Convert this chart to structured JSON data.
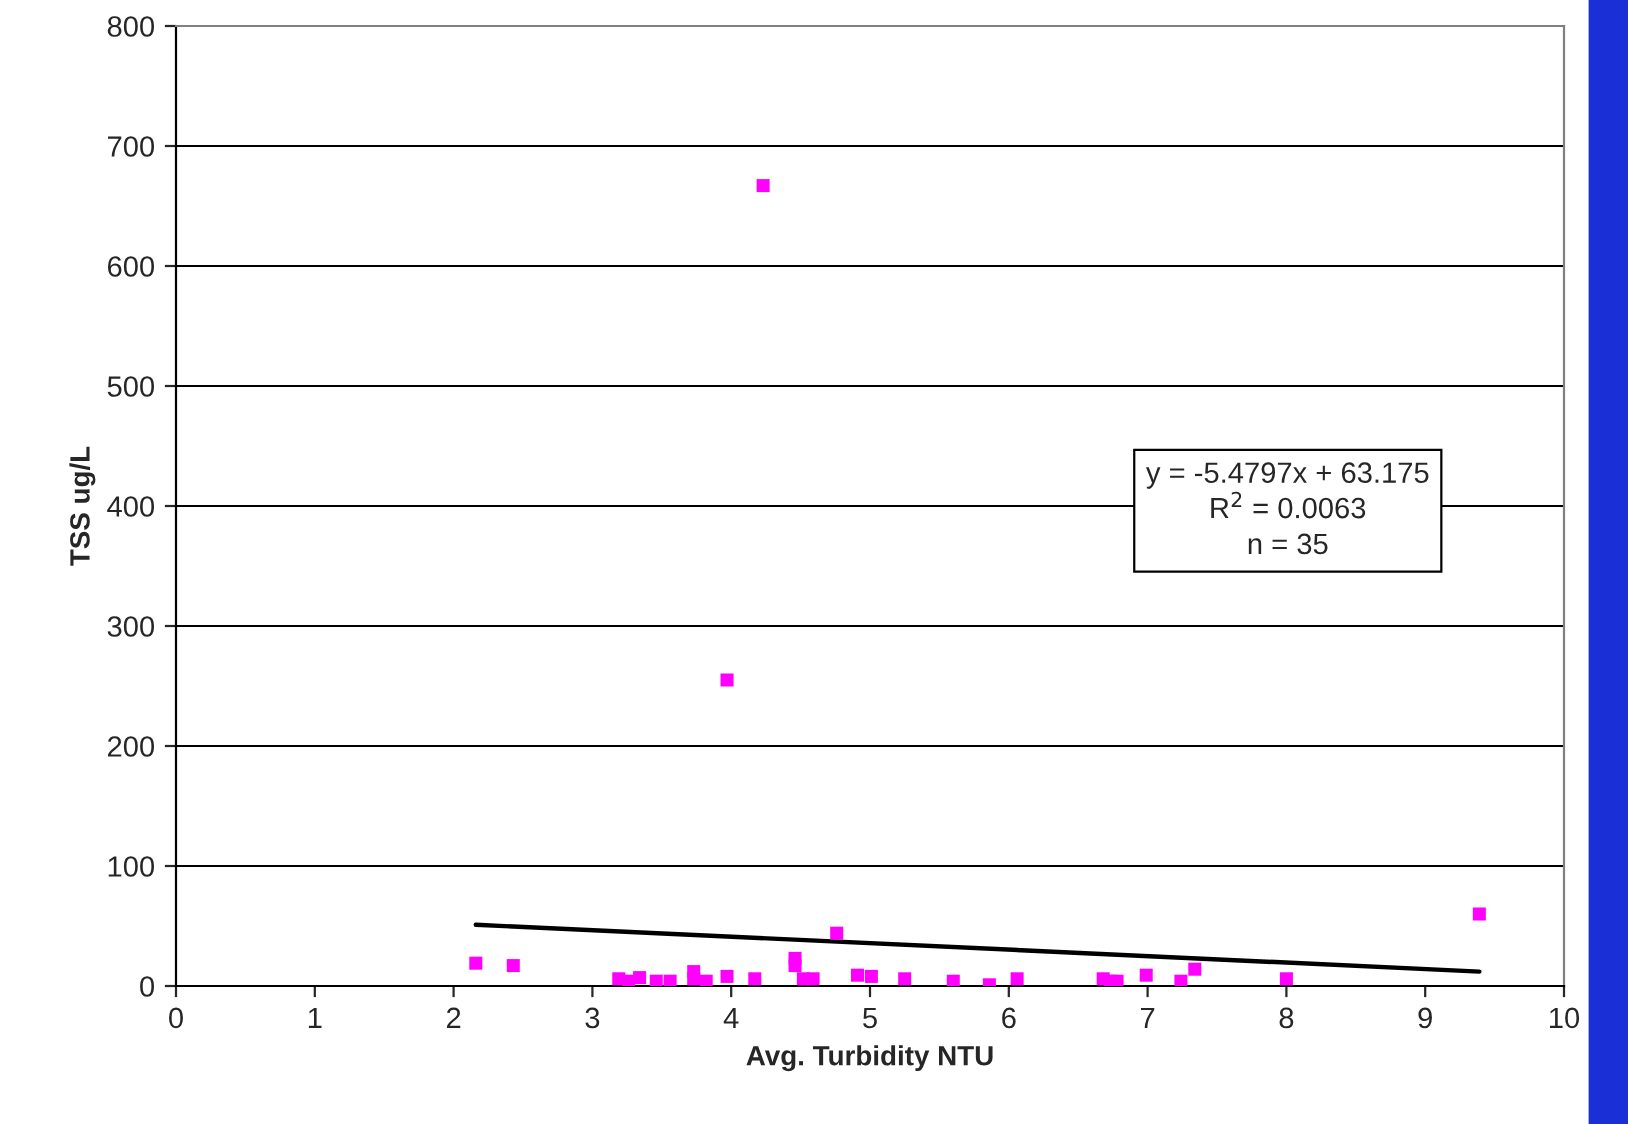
{
  "chart_data": {
    "type": "scatter",
    "xlabel": "Avg. Turbidity NTU",
    "ylabel": "TSS ug/L",
    "xlim": [
      0,
      10
    ],
    "xticks": [
      0,
      1,
      2,
      3,
      4,
      5,
      6,
      7,
      8,
      9,
      10
    ],
    "ylim": [
      0,
      800
    ],
    "yticks": [
      0,
      100,
      200,
      300,
      400,
      500,
      600,
      700,
      800
    ],
    "grid": "y",
    "series": [
      {
        "color": "#ff00ff",
        "marker": "square",
        "x": [
          2.16,
          2.43,
          3.19,
          3.26,
          3.34,
          3.46,
          3.56,
          3.73,
          3.73,
          3.82,
          3.97,
          4.17,
          4.46,
          4.46,
          4.52,
          4.59,
          4.76,
          4.91,
          5.01,
          5.25,
          5.6,
          5.86,
          6.06,
          6.68,
          6.73,
          6.78,
          6.99,
          7.24,
          7.34,
          8.0,
          9.39,
          3.97,
          4.23
        ],
        "values": [
          19,
          17,
          6,
          4,
          7,
          4,
          4,
          12,
          6,
          4,
          8,
          6,
          23,
          17,
          6,
          6,
          44,
          9,
          8,
          6,
          4,
          1,
          6,
          6,
          4,
          4,
          9,
          4,
          14,
          6,
          60,
          255,
          667
        ]
      },
      {
        "type": "line",
        "color": "#000000",
        "x": [
          2.16,
          9.39
        ],
        "values": [
          51,
          12
        ]
      }
    ],
    "annotations": [
      "y = -5.4797x + 63.175\nR$^{2}$ = 0.0063\nn = 35"
    ]
  }
}
